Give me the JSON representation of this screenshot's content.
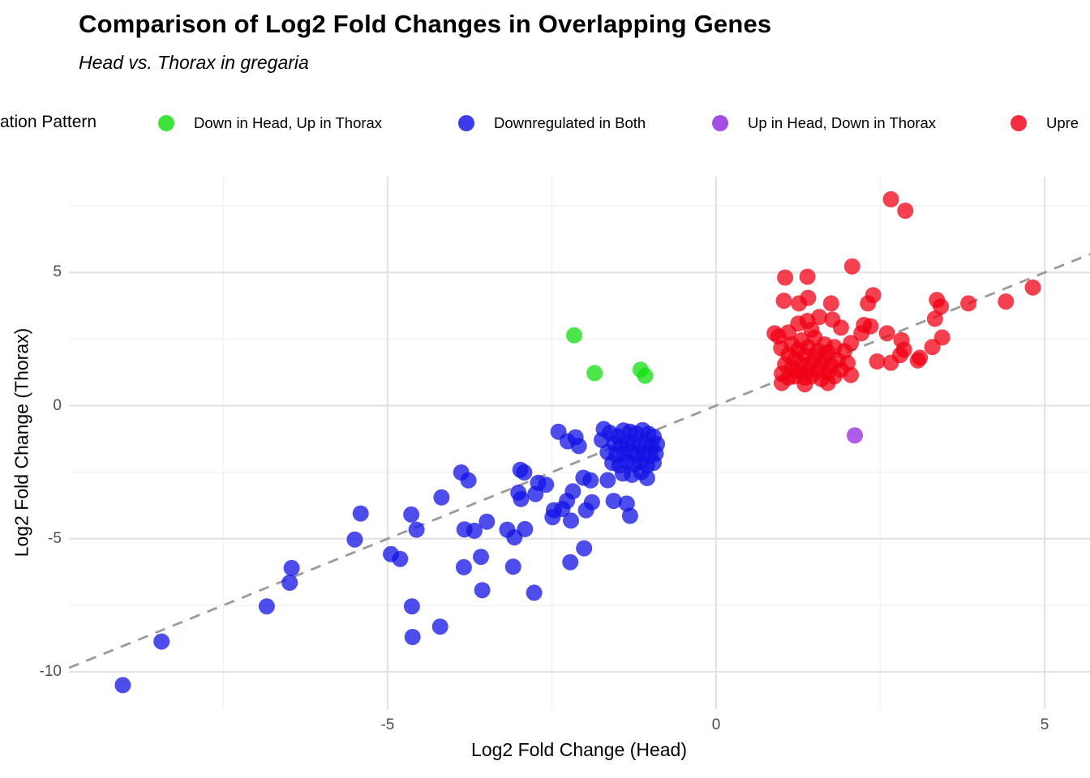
{
  "header": {
    "title": "Comparison of Log2 Fold Changes in Overlapping Genes",
    "subtitle": "Head vs. Thorax in gregaria"
  },
  "legend": {
    "title_visible": "ation Pattern",
    "items": [
      {
        "label": "Down in Head, Up in Thorax",
        "color": "#10DD10"
      },
      {
        "label": "Downregulated in Both",
        "color": "#1111E4"
      },
      {
        "label": "Up in Head, Down in Thorax",
        "color": "#9025E0"
      },
      {
        "label": "Upre",
        "color": "#F00014",
        "truncated_at_right_edge": true
      }
    ]
  },
  "chart_data": {
    "type": "scatter",
    "title": "Comparison of Log2 Fold Changes in Overlapping Genes",
    "subtitle": "Head vs. Thorax in gregaria",
    "xlabel": "Log2 Fold Change (Head)",
    "ylabel": "Log2 Fold Change (Thorax)",
    "xlim": [
      -9.85,
      5.69
    ],
    "ylim": [
      -11.4,
      8.6
    ],
    "x_ticks": [
      -5,
      0,
      5
    ],
    "y_ticks": [
      5,
      0,
      -5,
      -10
    ],
    "x_minor_gridlines": [
      -7.5,
      -2.5,
      2.5
    ],
    "y_minor_gridlines": [
      7.5,
      2.5,
      -2.5,
      -7.5
    ],
    "grid": "on",
    "legend_position": "top",
    "point_opacity": 0.75,
    "point_radius_px": 10,
    "identity_line": {
      "style": "dashed",
      "slope": 1,
      "intercept": 0,
      "color": "#9B9B9B"
    },
    "grid_colors": {
      "major": "#E3E3E3",
      "minor": "#F2F2F2"
    },
    "series": [
      {
        "name": "Down in Head, Up in Thorax",
        "color": "#10DD10",
        "points": [
          [
            -2.16,
            2.64
          ],
          [
            -1.85,
            1.22
          ],
          [
            -1.15,
            1.35
          ],
          [
            -1.08,
            1.12
          ]
        ]
      },
      {
        "name": "Downregulated in Both",
        "color": "#1111E4",
        "points": [
          [
            -9.03,
            -10.5
          ],
          [
            -8.44,
            -8.86
          ],
          [
            -6.84,
            -7.54
          ],
          [
            -6.49,
            -6.65
          ],
          [
            -6.46,
            -6.1
          ],
          [
            -5.5,
            -5.03
          ],
          [
            -5.41,
            -4.05
          ],
          [
            -4.95,
            -5.58
          ],
          [
            -4.81,
            -5.76
          ],
          [
            -4.64,
            -4.09
          ],
          [
            -4.56,
            -4.66
          ],
          [
            -4.63,
            -7.54
          ],
          [
            -4.62,
            -8.69
          ],
          [
            -4.2,
            -8.3
          ],
          [
            -4.18,
            -3.45
          ],
          [
            -3.88,
            -2.51
          ],
          [
            -3.77,
            -2.81
          ],
          [
            -3.83,
            -4.65
          ],
          [
            -3.68,
            -4.7
          ],
          [
            -3.49,
            -4.36
          ],
          [
            -3.84,
            -6.07
          ],
          [
            -3.58,
            -5.68
          ],
          [
            -3.56,
            -6.93
          ],
          [
            -3.18,
            -4.66
          ],
          [
            -3.07,
            -4.95
          ],
          [
            -3.09,
            -6.05
          ],
          [
            -2.91,
            -4.64
          ],
          [
            -2.77,
            -7.03
          ],
          [
            -2.98,
            -2.41
          ],
          [
            -2.92,
            -2.51
          ],
          [
            -3.01,
            -3.27
          ],
          [
            -2.97,
            -3.51
          ],
          [
            -2.75,
            -3.32
          ],
          [
            -2.71,
            -2.9
          ],
          [
            -2.59,
            -2.97
          ],
          [
            -2.4,
            -0.98
          ],
          [
            -2.26,
            -1.34
          ],
          [
            -2.14,
            -1.19
          ],
          [
            -2.09,
            -1.52
          ],
          [
            -2.02,
            -2.71
          ],
          [
            -1.91,
            -2.81
          ],
          [
            -2.18,
            -3.22
          ],
          [
            -2.27,
            -3.58
          ],
          [
            -2.34,
            -3.88
          ],
          [
            -2.47,
            -3.93
          ],
          [
            -2.49,
            -4.19
          ],
          [
            -2.21,
            -4.32
          ],
          [
            -1.98,
            -3.93
          ],
          [
            -1.89,
            -3.63
          ],
          [
            -1.71,
            -0.88
          ],
          [
            -1.74,
            -1.29
          ],
          [
            -1.56,
            -3.58
          ],
          [
            -1.36,
            -3.68
          ],
          [
            -1.31,
            -4.14
          ],
          [
            -2.01,
            -5.36
          ],
          [
            -2.22,
            -5.88
          ],
          [
            -1.62,
            -1.02
          ],
          [
            -1.5,
            -1.15
          ],
          [
            -1.41,
            -0.93
          ],
          [
            -1.31,
            -0.98
          ],
          [
            -1.22,
            -1.05
          ],
          [
            -1.12,
            -0.92
          ],
          [
            -1.03,
            -1.06
          ],
          [
            -0.95,
            -1.17
          ],
          [
            -1.55,
            -1.42
          ],
          [
            -1.45,
            -1.5
          ],
          [
            -1.35,
            -1.45
          ],
          [
            -1.26,
            -1.38
          ],
          [
            -1.17,
            -1.5
          ],
          [
            -1.07,
            -1.44
          ],
          [
            -0.98,
            -1.55
          ],
          [
            -0.9,
            -1.45
          ],
          [
            -1.65,
            -1.75
          ],
          [
            -1.52,
            -1.85
          ],
          [
            -1.4,
            -1.8
          ],
          [
            -1.3,
            -1.72
          ],
          [
            -1.2,
            -1.85
          ],
          [
            -1.1,
            -1.78
          ],
          [
            -1.0,
            -1.88
          ],
          [
            -0.92,
            -1.8
          ],
          [
            -1.58,
            -2.15
          ],
          [
            -1.47,
            -2.25
          ],
          [
            -1.36,
            -2.1
          ],
          [
            -1.25,
            -2.2
          ],
          [
            -1.15,
            -2.12
          ],
          [
            -1.05,
            -2.25
          ],
          [
            -0.95,
            -2.15
          ],
          [
            -1.42,
            -2.55
          ],
          [
            -1.28,
            -2.6
          ],
          [
            -1.14,
            -2.5
          ],
          [
            -1.65,
            -2.8
          ],
          [
            -1.05,
            -2.72
          ]
        ]
      },
      {
        "name": "Up in Head, Down in Thorax",
        "color": "#9025E0",
        "points": [
          [
            2.11,
            -1.12
          ]
        ]
      },
      {
        "name": "Upre",
        "color": "#F00014",
        "points": [
          [
            1.05,
            4.81
          ],
          [
            1.39,
            4.84
          ],
          [
            2.07,
            5.23
          ],
          [
            1.03,
            3.94
          ],
          [
            1.26,
            3.84
          ],
          [
            1.4,
            4.05
          ],
          [
            1.75,
            3.84
          ],
          [
            2.39,
            4.15
          ],
          [
            2.31,
            3.84
          ],
          [
            2.66,
            7.75
          ],
          [
            2.88,
            7.32
          ],
          [
            3.36,
            3.97
          ],
          [
            3.42,
            3.72
          ],
          [
            3.33,
            3.26
          ],
          [
            3.84,
            3.84
          ],
          [
            4.41,
            3.91
          ],
          [
            4.82,
            4.44
          ],
          [
            3.44,
            2.56
          ],
          [
            3.29,
            2.2
          ],
          [
            3.1,
            1.8
          ],
          [
            2.82,
            2.46
          ],
          [
            2.86,
            2.1
          ],
          [
            2.8,
            1.9
          ],
          [
            3.07,
            1.7
          ],
          [
            1.25,
            3.08
          ],
          [
            1.39,
            3.18
          ],
          [
            1.57,
            3.33
          ],
          [
            1.77,
            3.23
          ],
          [
            1.9,
            2.93
          ],
          [
            2.25,
            3.03
          ],
          [
            2.35,
            2.98
          ],
          [
            2.21,
            2.72
          ],
          [
            2.6,
            2.72
          ],
          [
            0.89,
            2.72
          ],
          [
            0.99,
            2.16
          ],
          [
            2.45,
            1.66
          ],
          [
            2.66,
            1.61
          ],
          [
            1.0,
            1.2
          ],
          [
            1.05,
            1.55
          ],
          [
            1.1,
            1.05
          ],
          [
            1.1,
            1.9
          ],
          [
            1.15,
            1.4
          ],
          [
            1.15,
            2.3
          ],
          [
            1.2,
            1.1
          ],
          [
            1.2,
            1.75
          ],
          [
            1.25,
            2.1
          ],
          [
            1.25,
            1.3
          ],
          [
            1.3,
            1.55
          ],
          [
            1.3,
            2.45
          ],
          [
            1.35,
            1.05
          ],
          [
            1.35,
            1.9
          ],
          [
            1.4,
            1.35
          ],
          [
            1.4,
            2.2
          ],
          [
            1.45,
            1.6
          ],
          [
            1.45,
            1.1
          ],
          [
            1.5,
            1.85
          ],
          [
            1.5,
            2.55
          ],
          [
            1.55,
            1.3
          ],
          [
            1.55,
            2.05
          ],
          [
            1.6,
            1.55
          ],
          [
            1.6,
            1.0
          ],
          [
            1.65,
            1.8
          ],
          [
            1.65,
            2.3
          ],
          [
            1.7,
            1.25
          ],
          [
            1.7,
            2.0
          ],
          [
            1.75,
            1.5
          ],
          [
            1.8,
            1.1
          ],
          [
            1.8,
            2.2
          ],
          [
            1.85,
            1.7
          ],
          [
            1.9,
            1.35
          ],
          [
            1.95,
            2.05
          ],
          [
            2.0,
            1.6
          ],
          [
            2.05,
            1.15
          ],
          [
            2.05,
            2.35
          ],
          [
            1.0,
            0.85
          ],
          [
            1.35,
            0.8
          ],
          [
            1.7,
            0.85
          ],
          [
            0.95,
            2.6
          ],
          [
            1.1,
            2.75
          ],
          [
            1.45,
            2.85
          ]
        ]
      }
    ]
  }
}
